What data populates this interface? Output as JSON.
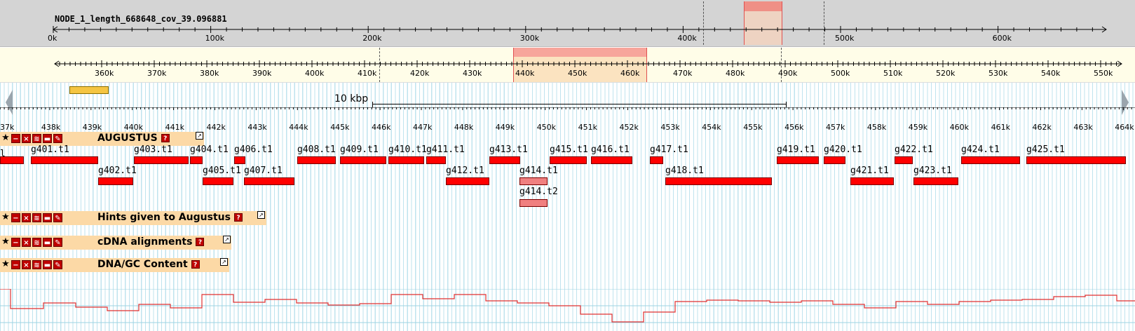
{
  "overview": {
    "sequence_name": "NODE_1_length_668648_cov_39.096881",
    "ticks": [
      "0k",
      "100k",
      "200k",
      "300k",
      "400k",
      "500k",
      "600k"
    ]
  },
  "region": {
    "ticks": [
      "360k",
      "370k",
      "380k",
      "390k",
      "400k",
      "410k",
      "420k",
      "430k",
      "440k",
      "450k",
      "460k",
      "470k",
      "480k",
      "490k",
      "500k",
      "510k",
      "520k",
      "530k",
      "540k",
      "550k"
    ]
  },
  "detail": {
    "scale_label": "10 kbp",
    "ticks": [
      "37k",
      "438k",
      "439k",
      "440k",
      "441k",
      "442k",
      "443k",
      "444k",
      "445k",
      "446k",
      "447k",
      "448k",
      "449k",
      "450k",
      "451k",
      "452k",
      "453k",
      "454k",
      "455k",
      "456k",
      "457k",
      "458k",
      "459k",
      "460k",
      "461k",
      "462k",
      "463k",
      "464k"
    ]
  },
  "tracks": [
    {
      "name": "AUGUSTUS"
    },
    {
      "name": "Hints given to Augustus"
    },
    {
      "name": "cDNA alignments"
    },
    {
      "name": "DNA/GC Content"
    }
  ],
  "track_buttons": [
    "favorite-icon",
    "collapse-icon",
    "close-icon",
    "rss-icon",
    "save-icon",
    "edit-icon"
  ],
  "genes": [
    {
      "id": "g401.t1",
      "row": 0
    },
    {
      "id": "g402.t1",
      "row": 1
    },
    {
      "id": "g403.t1",
      "row": 0
    },
    {
      "id": "g404.t1",
      "row": 0
    },
    {
      "id": "g405.t1",
      "row": 1
    },
    {
      "id": "g406.t1",
      "row": 0
    },
    {
      "id": "g407.t1",
      "row": 1
    },
    {
      "id": "g408.t1",
      "row": 0
    },
    {
      "id": "g409.t1",
      "row": 0
    },
    {
      "id": "g410.t1",
      "row": 0
    },
    {
      "id": "g411.t1",
      "row": 0
    },
    {
      "id": "g412.t1",
      "row": 1
    },
    {
      "id": "g413.t1",
      "row": 0
    },
    {
      "id": "g414.t1",
      "row": 1
    },
    {
      "id": "g414.t2",
      "row": 2
    },
    {
      "id": "g415.t1",
      "row": 0
    },
    {
      "id": "g416.t1",
      "row": 0
    },
    {
      "id": "g417.t1",
      "row": 0
    },
    {
      "id": "g418.t1",
      "row": 1
    },
    {
      "id": "g419.t1",
      "row": 0
    },
    {
      "id": "g420.t1",
      "row": 0
    },
    {
      "id": "g421.t1",
      "row": 1
    },
    {
      "id": "g422.t1",
      "row": 0
    },
    {
      "id": "g423.t1",
      "row": 1
    },
    {
      "id": "g424.t1",
      "row": 0
    },
    {
      "id": "g425.t1",
      "row": 0
    }
  ],
  "edge_labels": {
    "left_partial": "l"
  },
  "colors": {
    "gene_fill": "#ff0000",
    "gene_selected_fill": "#f08080",
    "track_header": "#fcd9a6",
    "gc_line": "#e03030",
    "grid": "#bfe3ee",
    "highlight": "#f4a9a0"
  }
}
